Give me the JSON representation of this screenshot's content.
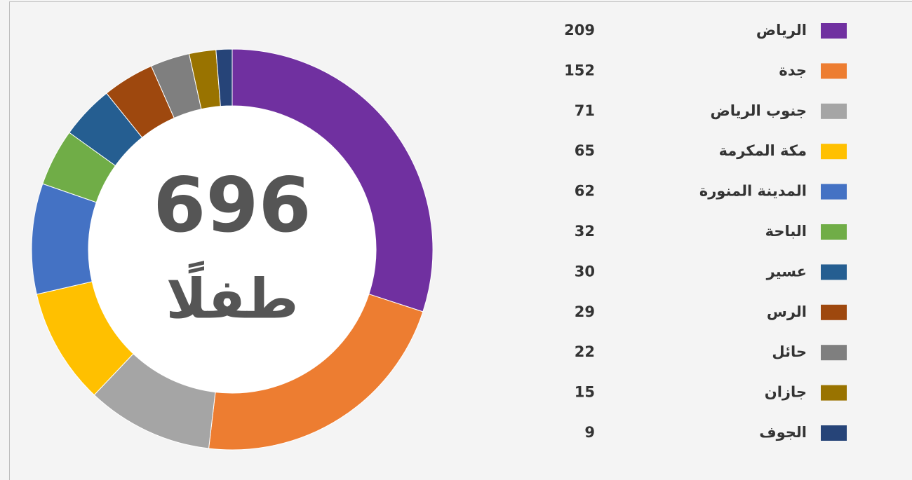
{
  "chart_data": {
    "type": "donut",
    "center_value": 696,
    "center_label": "طفلًا",
    "categories": [
      "الرياض",
      "جدة",
      "جنوب الرياض",
      "مكة المكرمة",
      "المدينة المنورة",
      "الباحة",
      "عسير",
      "الرس",
      "حائل",
      "جازان",
      "الجوف"
    ],
    "values": [
      209,
      152,
      71,
      65,
      62,
      32,
      30,
      29,
      22,
      15,
      9
    ],
    "colors": [
      "#7030a0",
      "#ed7d31",
      "#a5a5a5",
      "#ffc000",
      "#4472c4",
      "#70ad47",
      "#255e91",
      "#9e480e",
      "#7f7f7f",
      "#997300",
      "#264478"
    ]
  }
}
